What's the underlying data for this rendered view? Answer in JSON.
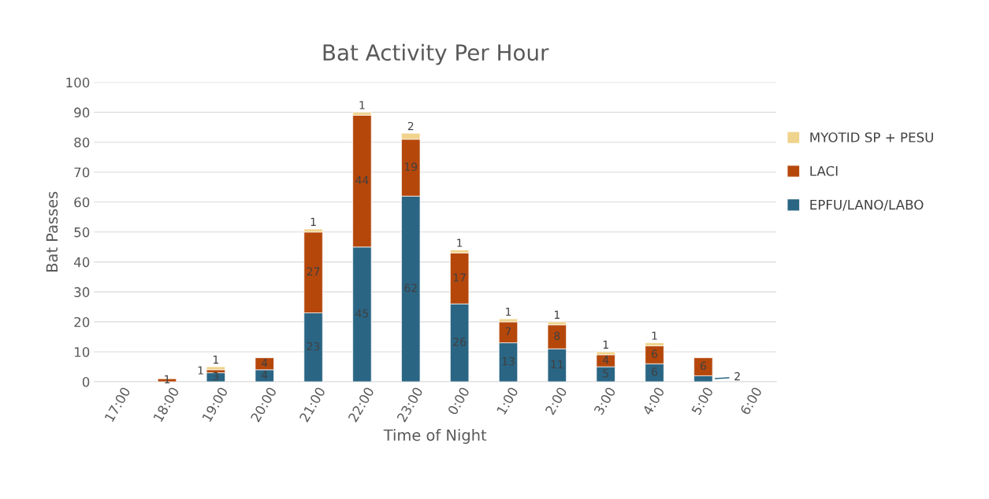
{
  "chart_data": {
    "type": "bar",
    "title": "Bat Activity Per Hour",
    "xlabel": "Time of Night",
    "ylabel": "Bat Passes",
    "categories": [
      "17:00",
      "18:00",
      "19:00",
      "20:00",
      "21:00",
      "22:00",
      "23:00",
      "0:00",
      "1:00",
      "2:00",
      "3:00",
      "4:00",
      "5:00",
      "6:00"
    ],
    "stacked": true,
    "ylim": [
      0,
      100
    ],
    "yticks": [
      0,
      10,
      20,
      30,
      40,
      50,
      60,
      70,
      80,
      90,
      100
    ],
    "grid": "y",
    "legend": "right",
    "data_labels": true,
    "series": [
      {
        "name": "EPFU/LANO/LABO",
        "color": "#2a6584",
        "values": [
          null,
          null,
          3,
          4,
          23,
          45,
          62,
          26,
          13,
          11,
          5,
          6,
          2,
          null
        ]
      },
      {
        "name": "LACI",
        "color": "#b5470b",
        "values": [
          null,
          1,
          1,
          4,
          27,
          44,
          19,
          17,
          7,
          8,
          4,
          6,
          6,
          null
        ]
      },
      {
        "name": "MYOTID SP + PESU",
        "color": "#f0d38c",
        "values": [
          null,
          null,
          1,
          null,
          1,
          1,
          2,
          1,
          1,
          1,
          1,
          1,
          null,
          null
        ]
      }
    ]
  }
}
